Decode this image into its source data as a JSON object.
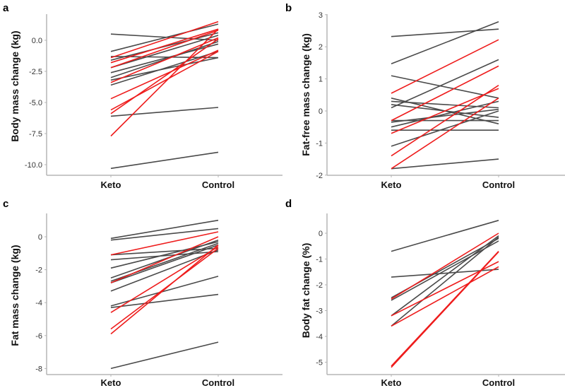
{
  "colors": {
    "gray": "#4a4a4a",
    "red": "#ee1c1c"
  },
  "chart_data": [
    {
      "type": "line",
      "panel": "a",
      "ylabel": "Body mass change (kg)",
      "xlabel": "",
      "categories": [
        "Keto",
        "Control"
      ],
      "ylim": [
        -10.6,
        1.8
      ],
      "yticks": [
        0.0,
        -2.5,
        -5.0,
        -7.5,
        -10.0
      ],
      "ytick_labels": [
        "0.0",
        "-2.5",
        "-5.0",
        "-7.5",
        "-10.0"
      ],
      "series": [
        {
          "group": "gray",
          "values": [
            0.5,
            0.0
          ]
        },
        {
          "group": "gray",
          "values": [
            -0.9,
            1.3
          ]
        },
        {
          "group": "gray",
          "values": [
            -1.3,
            -1.4
          ]
        },
        {
          "group": "gray",
          "values": [
            -1.6,
            0.6
          ]
        },
        {
          "group": "gray",
          "values": [
            -2.2,
            0.4
          ]
        },
        {
          "group": "gray",
          "values": [
            -2.6,
            -0.3
          ]
        },
        {
          "group": "gray",
          "values": [
            -3.0,
            -0.1
          ]
        },
        {
          "group": "gray",
          "values": [
            -3.2,
            -1.4
          ]
        },
        {
          "group": "gray",
          "values": [
            -3.6,
            -0.9
          ]
        },
        {
          "group": "gray",
          "values": [
            -6.1,
            -5.4
          ]
        },
        {
          "group": "gray",
          "values": [
            -10.3,
            -9.0
          ]
        },
        {
          "group": "red",
          "values": [
            -1.4,
            1.5
          ]
        },
        {
          "group": "red",
          "values": [
            -1.8,
            0.9
          ]
        },
        {
          "group": "red",
          "values": [
            -2.2,
            0.8
          ]
        },
        {
          "group": "red",
          "values": [
            -3.4,
            0.2
          ]
        },
        {
          "group": "red",
          "values": [
            -4.7,
            -0.8
          ]
        },
        {
          "group": "red",
          "values": [
            -5.6,
            -0.9
          ]
        },
        {
          "group": "red",
          "values": [
            -5.9,
            0.1
          ]
        },
        {
          "group": "red",
          "values": [
            -7.7,
            0.9
          ]
        }
      ]
    },
    {
      "type": "line",
      "panel": "b",
      "ylabel": "Fat-free mass change (kg)",
      "xlabel": "",
      "categories": [
        "Keto",
        "Control"
      ],
      "ylim": [
        -2,
        3
      ],
      "yticks": [
        3,
        2,
        1,
        0,
        -1,
        -2
      ],
      "ytick_labels": [
        "3",
        "2",
        "1",
        "0",
        "-1",
        "-2"
      ],
      "series": [
        {
          "group": "gray",
          "values": [
            2.32,
            2.55
          ]
        },
        {
          "group": "gray",
          "values": [
            1.47,
            2.78
          ]
        },
        {
          "group": "gray",
          "values": [
            1.1,
            0.4
          ]
        },
        {
          "group": "gray",
          "values": [
            0.4,
            -0.4
          ]
        },
        {
          "group": "gray",
          "values": [
            0.3,
            0.1
          ]
        },
        {
          "group": "gray",
          "values": [
            0.2,
            -0.2
          ]
        },
        {
          "group": "gray",
          "values": [
            0.1,
            1.6
          ]
        },
        {
          "group": "gray",
          "values": [
            -0.3,
            -0.3
          ]
        },
        {
          "group": "gray",
          "values": [
            -0.35,
            0.05
          ]
        },
        {
          "group": "gray",
          "values": [
            -0.5,
            0.3
          ]
        },
        {
          "group": "gray",
          "values": [
            -0.6,
            -0.6
          ]
        },
        {
          "group": "gray",
          "values": [
            -1.1,
            0.0
          ]
        },
        {
          "group": "gray",
          "values": [
            -1.8,
            -1.5
          ]
        },
        {
          "group": "red",
          "values": [
            0.55,
            2.22
          ]
        },
        {
          "group": "red",
          "values": [
            -0.3,
            1.4
          ]
        },
        {
          "group": "red",
          "values": [
            -0.7,
            0.7
          ]
        },
        {
          "group": "red",
          "values": [
            -1.4,
            0.8
          ]
        },
        {
          "group": "red",
          "values": [
            -1.8,
            0.4
          ]
        }
      ]
    },
    {
      "type": "line",
      "panel": "c",
      "ylabel": "Fat mass change (kg)",
      "xlabel": "",
      "categories": [
        "Keto",
        "Control"
      ],
      "ylim": [
        -8.4,
        1.4
      ],
      "yticks": [
        0,
        -2,
        -4,
        -6,
        -8
      ],
      "ytick_labels": [
        "0",
        "-2",
        "-4",
        "-6",
        "-8"
      ],
      "series": [
        {
          "group": "gray",
          "values": [
            -0.1,
            1.0
          ]
        },
        {
          "group": "gray",
          "values": [
            -0.2,
            0.5
          ]
        },
        {
          "group": "gray",
          "values": [
            -1.1,
            -0.7
          ]
        },
        {
          "group": "gray",
          "values": [
            -1.4,
            -0.9
          ]
        },
        {
          "group": "gray",
          "values": [
            -1.9,
            -0.3
          ]
        },
        {
          "group": "gray",
          "values": [
            -2.5,
            -0.2
          ]
        },
        {
          "group": "gray",
          "values": [
            -2.7,
            -0.4
          ]
        },
        {
          "group": "gray",
          "values": [
            -2.8,
            -0.5
          ]
        },
        {
          "group": "gray",
          "values": [
            -3.3,
            -0.8
          ]
        },
        {
          "group": "gray",
          "values": [
            -4.2,
            -2.4
          ]
        },
        {
          "group": "gray",
          "values": [
            -4.3,
            -3.5
          ]
        },
        {
          "group": "gray",
          "values": [
            -8.0,
            -6.4
          ]
        },
        {
          "group": "red",
          "values": [
            -1.1,
            0.3
          ]
        },
        {
          "group": "red",
          "values": [
            -2.8,
            0.0
          ]
        },
        {
          "group": "red",
          "values": [
            -4.6,
            -0.6
          ]
        },
        {
          "group": "red",
          "values": [
            -5.6,
            -0.7
          ]
        },
        {
          "group": "red",
          "values": [
            -5.9,
            -0.5
          ]
        }
      ]
    },
    {
      "type": "line",
      "panel": "d",
      "ylabel": "Body fat change (%)",
      "xlabel": "",
      "categories": [
        "Keto",
        "Control"
      ],
      "ylim": [
        -5.5,
        0.7
      ],
      "yticks": [
        0,
        -1,
        -2,
        -3,
        -4,
        -5
      ],
      "ytick_labels": [
        "0",
        "-1",
        "-2",
        "-3",
        "-4",
        "-5"
      ],
      "series": [
        {
          "group": "gray",
          "values": [
            -0.7,
            0.5
          ]
        },
        {
          "group": "gray",
          "values": [
            -1.7,
            -1.4
          ]
        },
        {
          "group": "gray",
          "values": [
            -2.5,
            -0.2
          ]
        },
        {
          "group": "gray",
          "values": [
            -2.6,
            -0.3
          ]
        },
        {
          "group": "gray",
          "values": [
            -3.2,
            -0.1
          ]
        },
        {
          "group": "gray",
          "values": [
            -3.6,
            -0.15
          ]
        },
        {
          "group": "red",
          "values": [
            -2.55,
            0.0
          ]
        },
        {
          "group": "red",
          "values": [
            -3.2,
            -1.1
          ]
        },
        {
          "group": "red",
          "values": [
            -3.6,
            -1.3
          ]
        },
        {
          "group": "red",
          "values": [
            -5.15,
            -0.7
          ]
        },
        {
          "group": "red",
          "values": [
            -5.2,
            -0.72
          ]
        }
      ]
    }
  ]
}
